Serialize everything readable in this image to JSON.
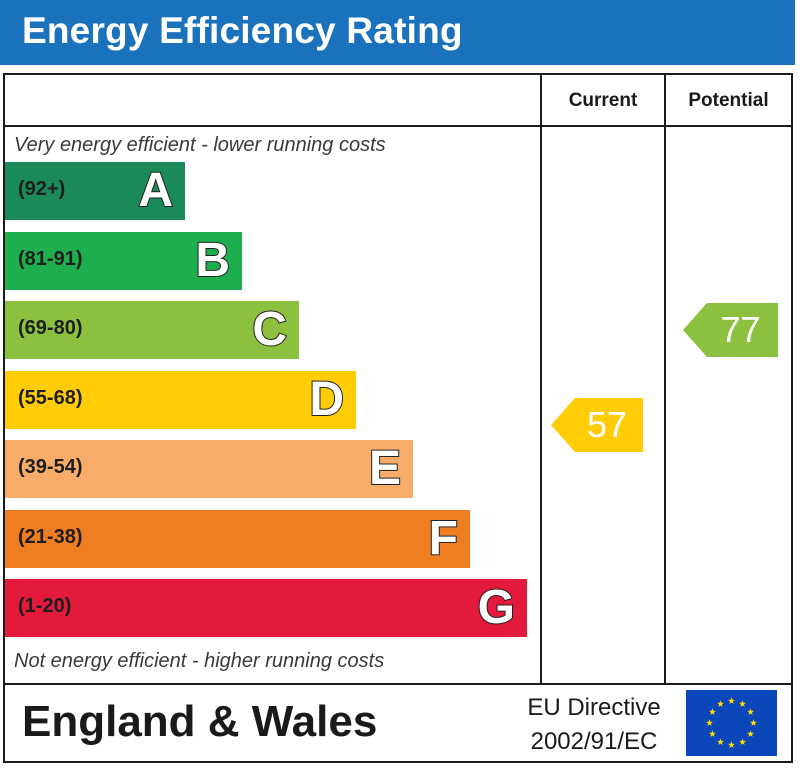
{
  "header": {
    "title": "Energy Efficiency Rating"
  },
  "columns": {
    "current": "Current",
    "potential": "Potential"
  },
  "captions": {
    "top": "Very energy efficient - lower running costs",
    "bottom": "Not energy efficient - higher running costs"
  },
  "chart_data": {
    "type": "bar",
    "title": "Energy Efficiency Rating",
    "categories": [
      "A",
      "B",
      "C",
      "D",
      "E",
      "F",
      "G"
    ],
    "bands": [
      {
        "letter": "A",
        "range": "(92+)",
        "color": "#1a8a5a"
      },
      {
        "letter": "B",
        "range": "(81-91)",
        "color": "#1fae4e"
      },
      {
        "letter": "C",
        "range": "(69-80)",
        "color": "#8cc03f"
      },
      {
        "letter": "D",
        "range": "(55-68)",
        "color": "#ffcc05"
      },
      {
        "letter": "E",
        "range": "(39-54)",
        "color": "#f8ac6a"
      },
      {
        "letter": "F",
        "range": "(21-38)",
        "color": "#ef7e23"
      },
      {
        "letter": "G",
        "range": "(1-20)",
        "color": "#e41a3c"
      }
    ],
    "current": {
      "value": 57,
      "band": "D",
      "color": "#ffcc05"
    },
    "potential": {
      "value": 77,
      "band": "C",
      "color": "#8cc03f"
    }
  },
  "footer": {
    "region": "England & Wales",
    "directive_line1": "EU Directive",
    "directive_line2": "2002/91/EC",
    "flag_icon": "eu-flag-icon",
    "flag_color": "#0b47b8",
    "star_color": "#ffdd00"
  }
}
